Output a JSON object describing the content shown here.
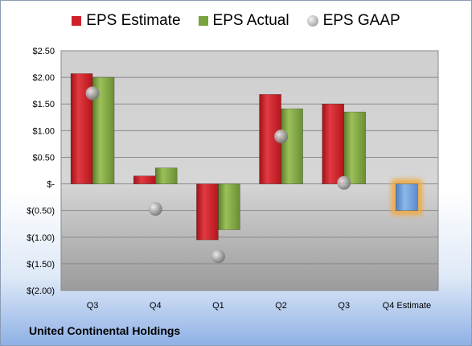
{
  "company": "United Continental Holdings",
  "legend": [
    {
      "name": "EPS Estimate",
      "color": "#d0202a",
      "marker": "square"
    },
    {
      "name": "EPS Actual",
      "color": "#7aa23e",
      "marker": "square"
    },
    {
      "name": "EPS GAAP",
      "color": "#a8a8a8",
      "marker": "sphere"
    }
  ],
  "colors": {
    "estimate": "#d0202a",
    "actual": "#7aa23e",
    "gaap": "#a8a8a8",
    "future_estimate": "#6e9fd9",
    "future_glow": "#f3a73b"
  },
  "chart_data": {
    "type": "bar",
    "categories": [
      "Q3",
      "Q4",
      "Q1",
      "Q2",
      "Q3",
      "Q4 Estimate"
    ],
    "series": [
      {
        "name": "EPS Estimate",
        "values": [
          2.07,
          0.15,
          -1.05,
          1.68,
          1.5,
          -0.5
        ]
      },
      {
        "name": "EPS Actual",
        "values": [
          2.0,
          0.3,
          -0.86,
          1.41,
          1.35,
          null
        ]
      },
      {
        "name": "EPS GAAP",
        "values": [
          1.7,
          -0.47,
          -1.36,
          0.89,
          0.02,
          null
        ]
      }
    ],
    "yticks": [
      "$2.50",
      "$2.00",
      "$1.50",
      "$1.00",
      "$0.50",
      "$-",
      "$(0.50)",
      "$(1.00)",
      "$(1.50)",
      "$(2.00)"
    ],
    "ytick_values": [
      2.5,
      2.0,
      1.5,
      1.0,
      0.5,
      0,
      -0.5,
      -1.0,
      -1.5,
      -2.0
    ],
    "ylim": [
      -2.0,
      2.5
    ],
    "grid": true,
    "legend_position": "top",
    "title": "",
    "xlabel": "",
    "ylabel": ""
  }
}
